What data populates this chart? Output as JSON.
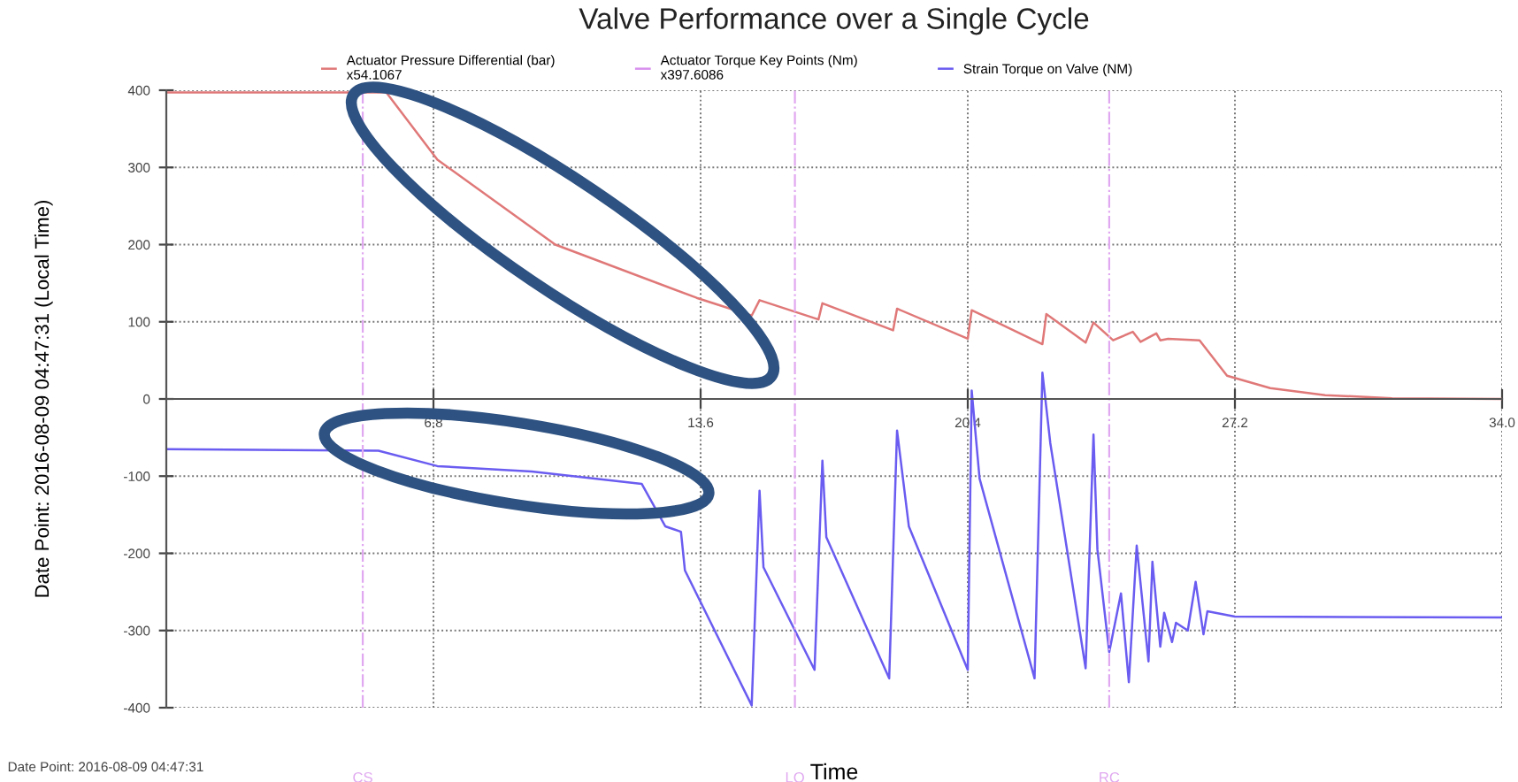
{
  "chart_data": {
    "type": "line",
    "title": "Valve Performance over a Single Cycle",
    "xlabel": "Time",
    "ylabel": "Date Point: 2016-08-09 04:47:31 (Local Time)",
    "annotations": [
      "Date Point: 2016-08-09 04:47:31"
    ],
    "xlim": [
      0,
      34.0
    ],
    "xticks": [
      {
        "value": 6.8,
        "label": "6.8"
      },
      {
        "value": 13.6,
        "label": "13.6"
      },
      {
        "value": 20.4,
        "label": "20.4"
      },
      {
        "value": 27.2,
        "label": "27.2"
      },
      {
        "value": 34.0,
        "label": "34.0"
      }
    ],
    "ylim": [
      -400,
      400
    ],
    "yticks": [
      -400,
      -300,
      -200,
      -100,
      0,
      100,
      200,
      300,
      400
    ],
    "grid": true,
    "legend": "top",
    "line_style": "solid",
    "marker": "none",
    "series": [
      {
        "name": "Actuator Pressure Differential (bar)\nx54.1067",
        "color": "#e07878",
        "x": [
          0,
          5.6,
          6.9,
          9.9,
          13.5,
          14.9,
          15.1,
          16.6,
          16.7,
          18.5,
          18.6,
          20.4,
          20.5,
          22.3,
          22.4,
          23.4,
          23.6,
          24.1,
          24.6,
          24.8,
          25.2,
          25.3,
          25.5,
          26.3,
          27.0,
          28.1,
          29.5,
          31.2,
          34.0
        ],
        "values": [
          397,
          397,
          310,
          200,
          131,
          108,
          128,
          103,
          124,
          89,
          117,
          78,
          115,
          71,
          110,
          73,
          99,
          76,
          87,
          74,
          85,
          76,
          78,
          76,
          30,
          14,
          5,
          1,
          0
        ]
      },
      {
        "name": "Actuator Torque Key Points (Nm)\nx397.6086",
        "color": "#d890ee",
        "values": [
          null
        ]
      },
      {
        "name": "Strain Torque on Valve (NM)",
        "color": "#6a5cf0",
        "x": [
          0,
          5.4,
          6.9,
          9.3,
          12.1,
          12.7,
          13.1,
          13.2,
          14.9,
          15.1,
          15.2,
          16.5,
          16.7,
          16.8,
          18.4,
          18.6,
          18.9,
          20.4,
          20.5,
          20.7,
          22.1,
          22.3,
          22.5,
          23.4,
          23.6,
          23.7,
          24.0,
          24.3,
          24.5,
          24.7,
          25.0,
          25.1,
          25.3,
          25.4,
          25.6,
          25.7,
          26.0,
          26.2,
          26.4,
          26.5,
          27.2,
          34.0
        ],
        "values": [
          -65,
          -67,
          -87,
          -94,
          -110,
          -165,
          -172,
          -222,
          -397,
          -119,
          -218,
          -351,
          -80,
          -179,
          -362,
          -41,
          -165,
          -351,
          11,
          -103,
          -362,
          34,
          -57,
          -349,
          -46,
          -195,
          -328,
          -252,
          -367,
          -190,
          -340,
          -211,
          -321,
          -277,
          -315,
          -290,
          -300,
          -237,
          -305,
          -275,
          -282,
          -283
        ]
      }
    ],
    "ref_lines": [
      {
        "axis": "x",
        "value": 5.0,
        "label": "CS",
        "color": "#e0a8f0",
        "line_style": "dashdot"
      },
      {
        "axis": "x",
        "value": 16.0,
        "label": "LO",
        "color": "#e0a8f0",
        "line_style": "dashdot"
      },
      {
        "axis": "x",
        "value": 24.0,
        "label": "RC",
        "color": "#e0a8f0",
        "line_style": "dashdot"
      }
    ]
  }
}
